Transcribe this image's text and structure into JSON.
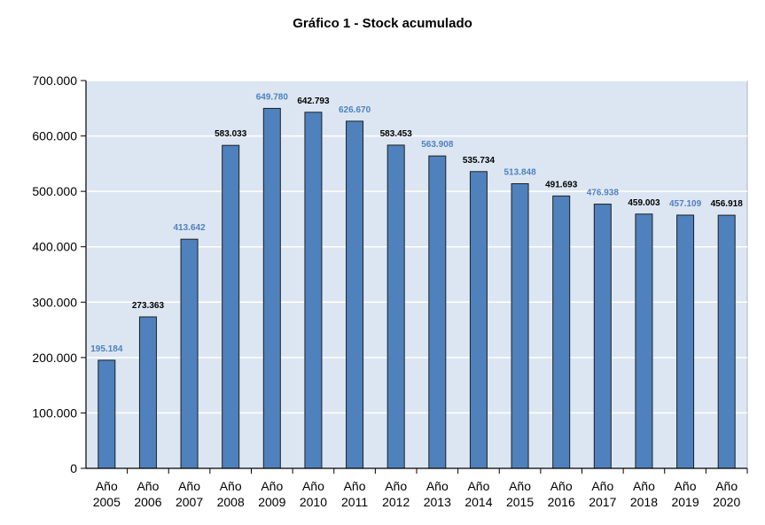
{
  "chart_data": {
    "type": "bar",
    "title": "Gráfico  1 - Stock acumulado",
    "xlabel": "",
    "ylabel": "",
    "ylim": [
      0,
      700000
    ],
    "yticks": [
      0,
      100000,
      200000,
      300000,
      400000,
      500000,
      600000,
      700000
    ],
    "ytick_labels": [
      "0",
      "100.000",
      "200.000",
      "300.000",
      "400.000",
      "500.000",
      "600.000",
      "700.000"
    ],
    "grid": true,
    "categories": [
      [
        "Año",
        "2005"
      ],
      [
        "Año",
        "2006"
      ],
      [
        "Año",
        "2007"
      ],
      [
        "Año",
        "2008"
      ],
      [
        "Año",
        "2009"
      ],
      [
        "Año",
        "2010"
      ],
      [
        "Año",
        "2011"
      ],
      [
        "Año",
        "2012"
      ],
      [
        "Año",
        "2013"
      ],
      [
        "Año",
        "2014"
      ],
      [
        "Año",
        "2015"
      ],
      [
        "Año",
        "2016"
      ],
      [
        "Año",
        "2017"
      ],
      [
        "Año",
        "2018"
      ],
      [
        "Año",
        "2019"
      ],
      [
        "Año",
        "2020"
      ]
    ],
    "values": [
      195184,
      273363,
      413642,
      583033,
      649780,
      642793,
      626670,
      583453,
      563908,
      535734,
      513848,
      491693,
      476938,
      459003,
      457109,
      456918
    ],
    "data_labels": [
      "195.184",
      "273.363",
      "413.642",
      "583.033",
      "649.780",
      "642.793",
      "626.670",
      "583.453",
      "563.908",
      "535.734",
      "513.848",
      "491.693",
      "476.938",
      "459.003",
      "457.109",
      "456.918"
    ],
    "label_colors": [
      "#4f81bd",
      "#000000",
      "#4f81bd",
      "#000000",
      "#4f81bd",
      "#000000",
      "#4f81bd",
      "#000000",
      "#4f81bd",
      "#000000",
      "#4f81bd",
      "#000000",
      "#4f81bd",
      "#000000",
      "#4f81bd",
      "#000000"
    ],
    "colors": {
      "bar": "#4f81bd",
      "bar_stroke": "#1f1f1f",
      "plot_background": "#dce6f2",
      "gridline": "#ffffff",
      "axis": "#000000"
    }
  }
}
